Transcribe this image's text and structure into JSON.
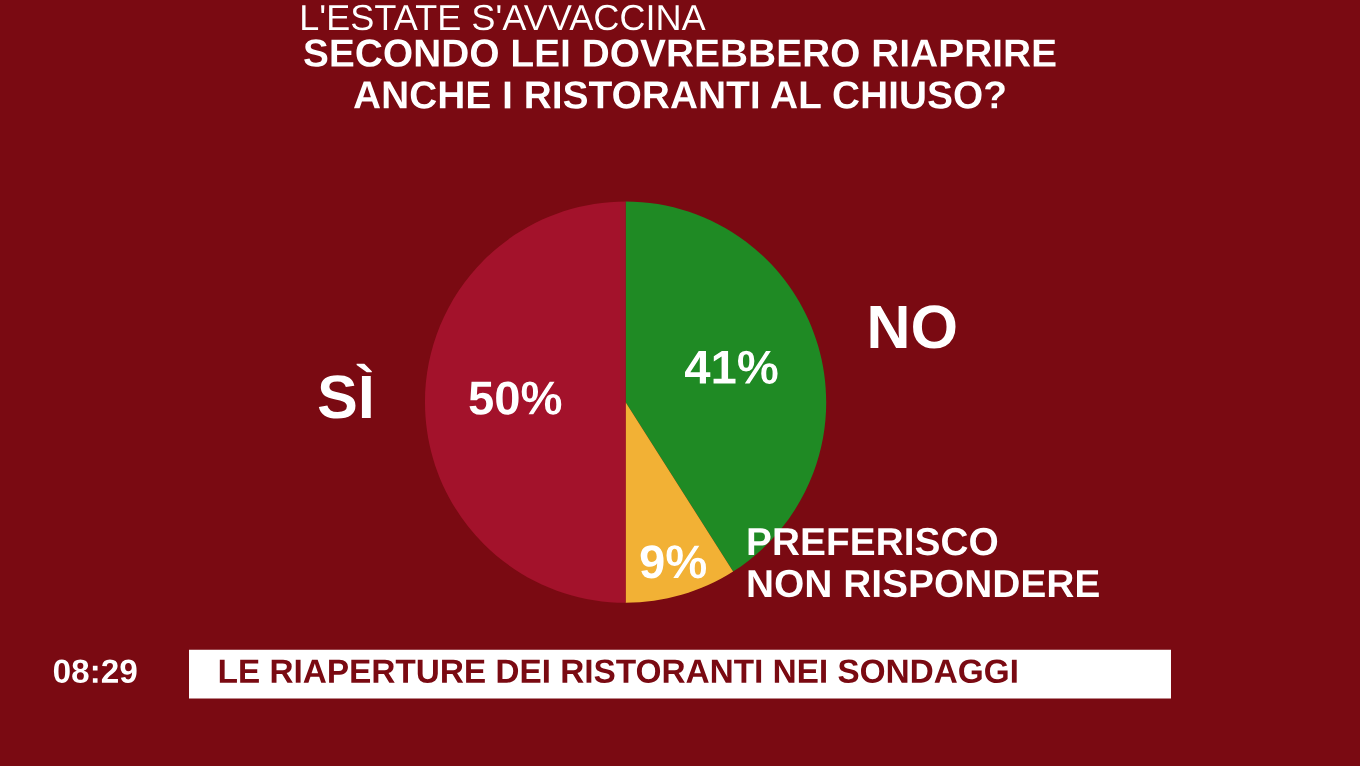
{
  "chart_data": {
    "type": "pie",
    "title": "SECONDO LEI DOVREBBERO RIAPRIRE\nANCHE I RISTORANTI AL CHIUSO?",
    "subtitle": "L'ESTATE S'AVVACCINA",
    "categories": [
      "NO",
      "PREFERISCO\nNON RISPONDERE",
      "SÌ"
    ],
    "values": [
      41,
      9,
      50
    ],
    "colors": [
      "#1f8a24",
      "#f2b135",
      "#a3122b"
    ],
    "value_labels": [
      "41%",
      "9%",
      "50%"
    ],
    "annotations": [
      "LE RIAPERTURE DEI RISTORANTI NEI SONDAGGI",
      "08:29"
    ]
  }
}
